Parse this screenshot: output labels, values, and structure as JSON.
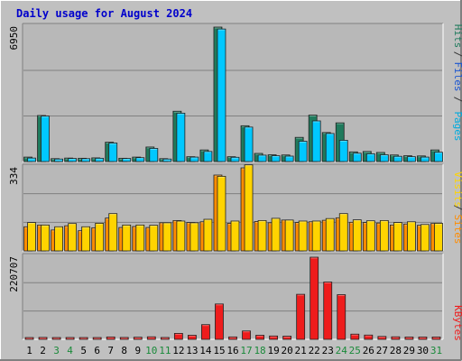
{
  "title": "Daily usage for August 2024",
  "colors": {
    "background": "#c0c0c0",
    "panel": "#b8b8b8",
    "title": "#0000cc",
    "hits": "#1f7a5c",
    "files": "#00c8ff",
    "pages": "#00aadd",
    "visits": "#ffd400",
    "sites": "#ff8c00",
    "kbytes": "#ee1c1c",
    "weekend_day": "#1a8a3a",
    "weekday_day": "#000000"
  },
  "chart_data": [
    {
      "type": "bar",
      "name": "hits-files-pages",
      "categories": [
        "1",
        "2",
        "3",
        "4",
        "5",
        "6",
        "7",
        "8",
        "9",
        "10",
        "11",
        "12",
        "13",
        "14",
        "15",
        "16",
        "17",
        "18",
        "19",
        "20",
        "21",
        "22",
        "23",
        "24",
        "25",
        "26",
        "27",
        "28",
        "29",
        "30",
        "31"
      ],
      "ymax_label": "6950",
      "ylim": [
        0,
        6950
      ],
      "series": [
        {
          "name": "Hits",
          "values": [
            230,
            2380,
            150,
            180,
            170,
            190,
            1000,
            170,
            230,
            750,
            150,
            2600,
            250,
            600,
            6950,
            250,
            1850,
            420,
            350,
            340,
            1250,
            2400,
            1500,
            2000,
            500,
            520,
            470,
            340,
            300,
            290,
            600
          ]
        },
        {
          "name": "Files",
          "values": [
            180,
            2350,
            130,
            160,
            150,
            170,
            960,
            160,
            200,
            680,
            130,
            2500,
            230,
            520,
            6850,
            220,
            1780,
            330,
            300,
            280,
            1050,
            2100,
            1450,
            1100,
            430,
            400,
            350,
            270,
            250,
            230,
            480
          ]
        }
      ],
      "axis_labels": [
        "Pages",
        "Files",
        "Hits"
      ]
    },
    {
      "type": "bar",
      "name": "visits-sites",
      "categories": [
        "1",
        "2",
        "3",
        "4",
        "5",
        "6",
        "7",
        "8",
        "9",
        "10",
        "11",
        "12",
        "13",
        "14",
        "15",
        "16",
        "17",
        "18",
        "19",
        "20",
        "21",
        "22",
        "23",
        "24",
        "25",
        "26",
        "27",
        "28",
        "29",
        "30",
        "31"
      ],
      "ymax_label": "334",
      "ylim": [
        0,
        334
      ],
      "series": [
        {
          "name": "Visits",
          "values": [
            97,
            104,
            84,
            101,
            81,
            93,
            132,
            94,
            98,
            94,
            113,
            122,
            114,
            117,
            305,
            111,
            334,
            118,
            113,
            124,
            114,
            117,
            123,
            133,
            115,
            114,
            112,
            104,
            108,
            103,
            110
          ]
        },
        {
          "name": "Sites",
          "values": [
            114,
            104,
            97,
            110,
            97,
            111,
            150,
            104,
            104,
            103,
            113,
            120,
            113,
            127,
            300,
            120,
            346,
            122,
            131,
            124,
            120,
            120,
            130,
            150,
            125,
            121,
            122,
            114,
            117,
            106,
            111
          ]
        }
      ],
      "axis_labels": [
        "Sites",
        "Visits"
      ]
    },
    {
      "type": "bar",
      "name": "kbytes",
      "categories": [
        "1",
        "2",
        "3",
        "4",
        "5",
        "6",
        "7",
        "8",
        "9",
        "10",
        "11",
        "12",
        "13",
        "14",
        "15",
        "16",
        "17",
        "18",
        "19",
        "20",
        "21",
        "22",
        "23",
        "24",
        "25",
        "26",
        "27",
        "28",
        "29",
        "30",
        "31"
      ],
      "ymax_label": "220707",
      "ylim": [
        0,
        220707
      ],
      "series": [
        {
          "name": "KBytes",
          "values": [
            4500,
            5200,
            4800,
            5000,
            4600,
            4700,
            6400,
            5100,
            5700,
            6800,
            5000,
            16000,
            11000,
            39500,
            95000,
            6500,
            22500,
            11000,
            9000,
            8500,
            121000,
            220707,
            154000,
            120000,
            14000,
            11500,
            7800,
            6800,
            6200,
            6200,
            6300
          ]
        }
      ],
      "axis_labels": [
        "KBytes"
      ]
    }
  ],
  "weekend_days": [
    3,
    4,
    10,
    11,
    17,
    18,
    24,
    25,
    31
  ]
}
